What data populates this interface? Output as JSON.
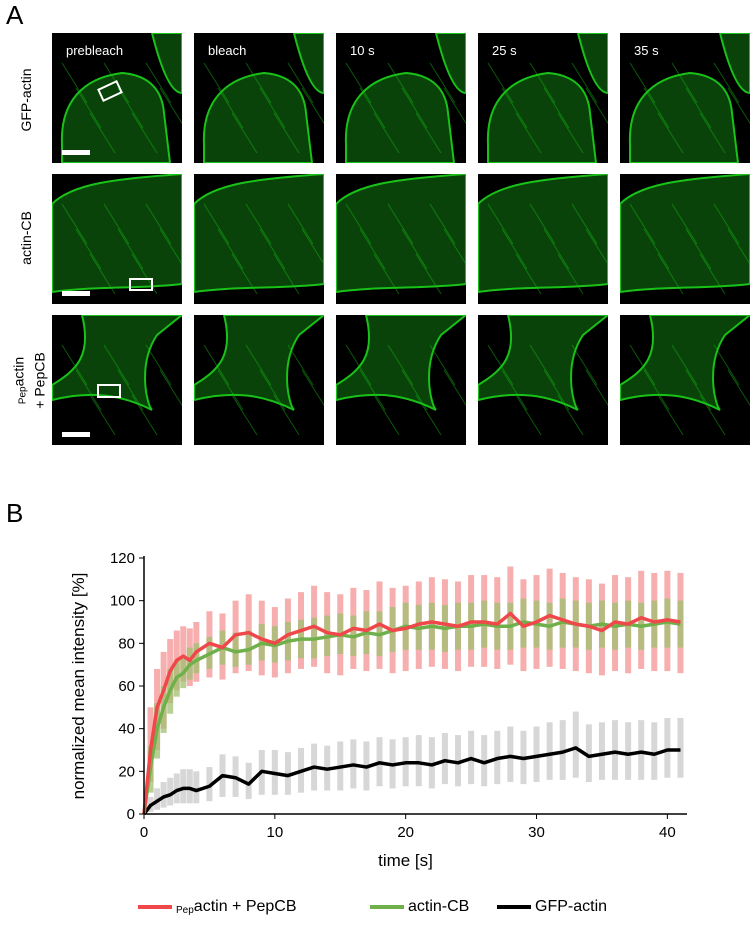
{
  "figure": {
    "panel_a_label": "A",
    "panel_b_label": "B",
    "columns": [
      "prebleach",
      "bleach",
      "10 s",
      "25 s",
      "35 s"
    ],
    "rows": [
      {
        "label": "GFP-actin"
      },
      {
        "label": "actin-CB"
      },
      {
        "label_sub": "Pep",
        "label_main": "actin",
        "label_line2": "+ PepCB"
      }
    ]
  },
  "colors": {
    "pep": "#f0474a",
    "pep_band": "#f5a0a0",
    "cb": "#70b04a",
    "cb_band": "#a0c070",
    "gfp": "#000000",
    "gfp_band": "#d0d0d0",
    "cell_green": "#19c119"
  },
  "chart_data": {
    "type": "line",
    "xlabel": "time [s]",
    "ylabel": "normalized mean intensity [%]",
    "xlim": [
      0,
      41.5
    ],
    "ylim": [
      0,
      120
    ],
    "xticks": [
      0,
      10,
      20,
      30,
      40
    ],
    "yticks": [
      0,
      20,
      40,
      60,
      80,
      100,
      120
    ],
    "grid": false,
    "legend_position": "bottom",
    "x": [
      0,
      0.5,
      1,
      1.5,
      2,
      2.5,
      3,
      3.5,
      4,
      5,
      6,
      7,
      8,
      9,
      10,
      11,
      12,
      13,
      14,
      15,
      16,
      17,
      18,
      19,
      20,
      21,
      22,
      23,
      24,
      25,
      26,
      27,
      28,
      29,
      30,
      31,
      32,
      33,
      34,
      35,
      36,
      37,
      38,
      39,
      40,
      41
    ],
    "series": [
      {
        "name_sub": "Pep",
        "name": "actin + PepCB",
        "color": "#f0474a",
        "values": [
          0,
          30,
          50,
          58,
          67,
          72,
          74,
          72,
          76,
          80,
          78,
          84,
          85,
          82,
          80,
          84,
          86,
          88,
          85,
          84,
          87,
          86,
          89,
          86,
          87,
          89,
          90,
          89,
          88,
          90,
          90,
          89,
          94,
          88,
          90,
          93,
          91,
          89,
          88,
          86,
          90,
          89,
          92,
          90,
          91,
          90
        ],
        "band_low": [
          0,
          15,
          30,
          40,
          52,
          58,
          62,
          60,
          62,
          64,
          63,
          66,
          67,
          65,
          64,
          66,
          68,
          69,
          66,
          65,
          68,
          67,
          68,
          66,
          67,
          68,
          69,
          68,
          67,
          69,
          69,
          68,
          70,
          67,
          68,
          69,
          68,
          67,
          66,
          65,
          67,
          66,
          68,
          67,
          67,
          66
        ],
        "band_high": [
          0,
          50,
          68,
          76,
          82,
          86,
          88,
          87,
          90,
          95,
          94,
          100,
          103,
          100,
          97,
          101,
          104,
          107,
          104,
          103,
          106,
          105,
          109,
          106,
          107,
          109,
          111,
          110,
          109,
          112,
          112,
          111,
          116,
          110,
          112,
          115,
          113,
          111,
          110,
          108,
          112,
          111,
          114,
          113,
          114,
          113
        ]
      },
      {
        "name": "actin-CB",
        "color": "#70b04a",
        "values": [
          0,
          22,
          40,
          50,
          58,
          64,
          66,
          70,
          72,
          75,
          78,
          76,
          77,
          80,
          79,
          81,
          82,
          82,
          83,
          84,
          83,
          85,
          84,
          86,
          88,
          87,
          88,
          87,
          88,
          88,
          89,
          88,
          88,
          90,
          89,
          88,
          90,
          89,
          88,
          89,
          88,
          89,
          88,
          89,
          90,
          89
        ],
        "band_low": [
          0,
          10,
          26,
          38,
          47,
          55,
          59,
          63,
          66,
          68,
          70,
          69,
          70,
          72,
          71,
          72,
          73,
          73,
          74,
          75,
          74,
          75,
          74,
          76,
          77,
          77,
          77,
          76,
          77,
          77,
          78,
          77,
          77,
          78,
          78,
          77,
          78,
          78,
          77,
          78,
          77,
          78,
          77,
          78,
          78,
          78
        ],
        "band_high": [
          0,
          32,
          52,
          60,
          68,
          72,
          74,
          78,
          80,
          83,
          86,
          85,
          86,
          89,
          88,
          90,
          91,
          92,
          93,
          94,
          93,
          95,
          95,
          97,
          99,
          98,
          99,
          98,
          99,
          99,
          100,
          99,
          99,
          101,
          100,
          99,
          101,
          100,
          99,
          100,
          99,
          100,
          99,
          100,
          101,
          100
        ]
      },
      {
        "name": "GFP-actin",
        "color": "#000000",
        "values": [
          0,
          4,
          6,
          8,
          9,
          11,
          12,
          12,
          11,
          13,
          18,
          17,
          14,
          20,
          19,
          18,
          20,
          22,
          21,
          22,
          23,
          22,
          24,
          23,
          24,
          24,
          23,
          25,
          24,
          26,
          24,
          26,
          27,
          26,
          27,
          28,
          29,
          31,
          27,
          28,
          29,
          28,
          29,
          28,
          30,
          30
        ],
        "band_low": [
          0,
          1,
          2,
          3,
          4,
          5,
          5,
          5,
          5,
          6,
          8,
          8,
          7,
          9,
          9,
          9,
          10,
          11,
          11,
          11,
          12,
          11,
          13,
          12,
          13,
          13,
          12,
          14,
          13,
          14,
          13,
          14,
          15,
          14,
          15,
          16,
          16,
          17,
          15,
          16,
          16,
          16,
          16,
          16,
          17,
          17
        ],
        "band_high": [
          0,
          8,
          12,
          15,
          17,
          19,
          21,
          21,
          20,
          22,
          28,
          27,
          24,
          30,
          30,
          29,
          31,
          33,
          32,
          34,
          35,
          34,
          36,
          35,
          36,
          37,
          36,
          38,
          37,
          39,
          37,
          39,
          41,
          39,
          41,
          43,
          44,
          48,
          42,
          43,
          44,
          43,
          44,
          43,
          45,
          45
        ]
      }
    ]
  }
}
